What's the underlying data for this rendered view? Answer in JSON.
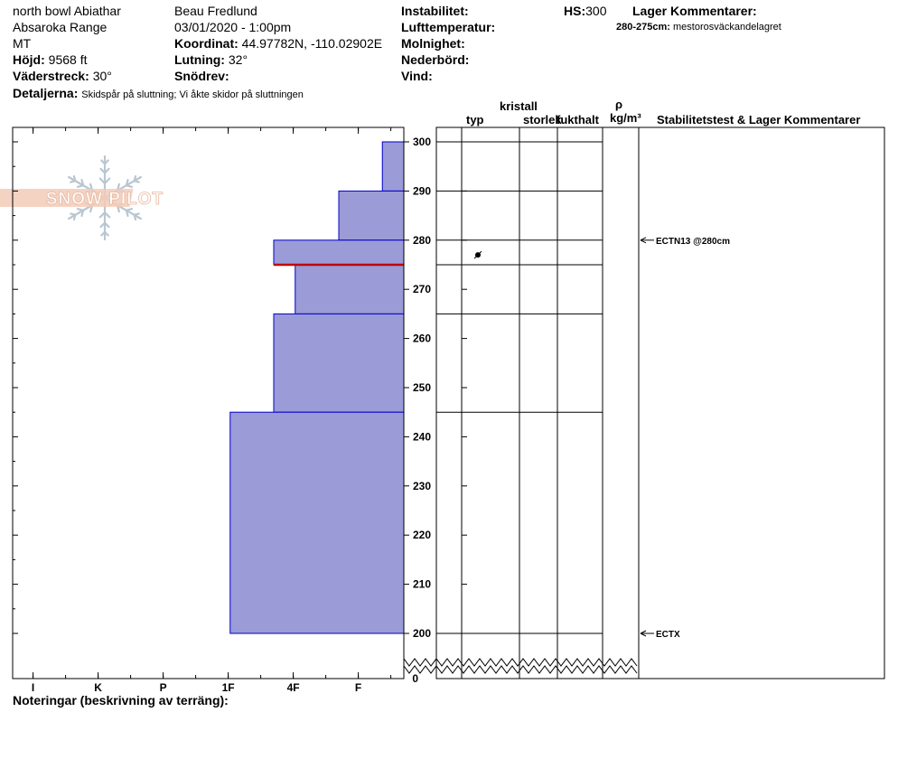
{
  "header": {
    "location_name": "north bowl Abiathar",
    "range": "Absaroka Range",
    "state": "MT",
    "elevation_label": "Höjd:",
    "elevation_value": "9568 ft",
    "aspect_label": "Väderstreck:",
    "aspect_value": "30°",
    "details_label": "Detaljerna:",
    "details_value": "Skidspår på sluttning;  Vi åkte skidor på sluttningen",
    "observer": "Beau  Fredlund",
    "datetime": "03/01/2020 - 1:00pm",
    "coord_label": "Koordinat:",
    "coord_value": "44.97782N, -110.02902E",
    "slope_label": "Lutning:",
    "slope_value": "32°",
    "drift_label": "Snödrev:",
    "instability_label": "Instabilitet:",
    "airtemp_label": "Lufttemperatur:",
    "cloud_label": "Molnighet:",
    "precip_label": "Nederbörd:",
    "wind_label": "Vind:",
    "hs_label": "HS:",
    "hs_value": "300",
    "layer_comments_label": "Lager Kommentarer:",
    "layer_comment_range": "280-275cm:",
    "layer_comment_text": "mestorosväckandelagret"
  },
  "columns": {
    "crystal": "kristall",
    "type": "typ",
    "size": "storlek",
    "moisture": "fukthalt",
    "rho": "ρ",
    "density_unit": "kg/m³",
    "stability": "Stabilitetstest & Lager Kommentarer"
  },
  "footer": {
    "notes_label": "Noteringar (beskrivning av terräng):"
  },
  "logo_text": "SNOW PILOT",
  "chart_data": {
    "type": "bar",
    "orientation": "horizontal",
    "ylabel": "",
    "ylim": [
      200,
      300
    ],
    "y_broken_axis_zero": "0",
    "hardness_ticks": [
      "I",
      "K",
      "P",
      "1F",
      "4F",
      "F"
    ],
    "y_ticks": [
      300,
      290,
      280,
      270,
      260,
      250,
      240,
      230,
      220,
      210,
      200
    ],
    "layers": [
      {
        "top": 300,
        "bottom": 290,
        "hardness": 0.33
      },
      {
        "top": 290,
        "bottom": 280,
        "hardness": 1.0
      },
      {
        "top": 280,
        "bottom": 275,
        "hardness": 2.0
      },
      {
        "top": 275,
        "bottom": 265,
        "hardness": 1.67
      },
      {
        "top": 265,
        "bottom": 245,
        "hardness": 2.0
      },
      {
        "top": 245,
        "bottom": 200,
        "hardness": 2.67
      }
    ],
    "hardness_scale_note": "hardness in steps from F (0) toward I (6)",
    "layer_lines": [
      300,
      290,
      280,
      275,
      265,
      245,
      200
    ],
    "weak_layer": 275,
    "crystal_symbol_at": 277,
    "stability_tests": [
      {
        "depth": 280,
        "label": "ECTN13 @280cm"
      },
      {
        "depth": 200,
        "label": "ECTX"
      }
    ],
    "colors": {
      "fill": "#9b9bd8",
      "stroke": "#0000c8",
      "weak_layer": "#c00000"
    }
  }
}
